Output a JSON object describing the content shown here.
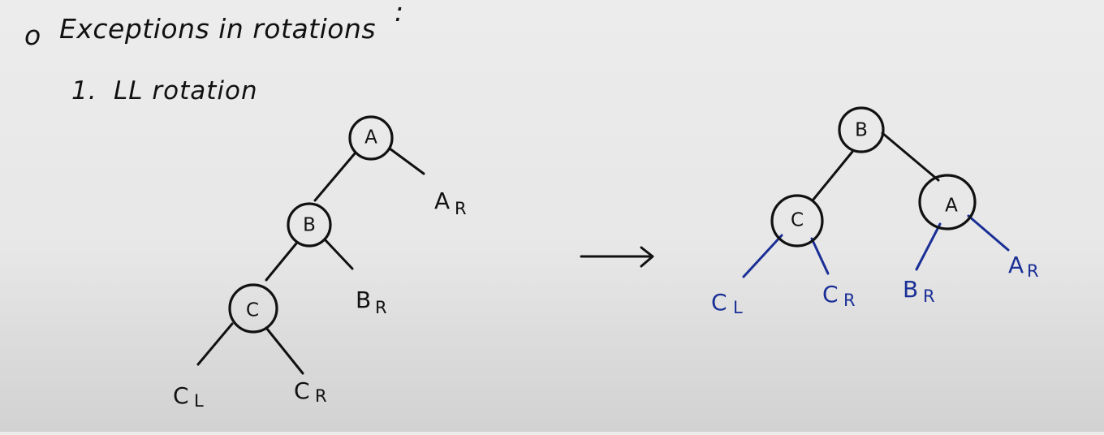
{
  "header": {
    "bullet": "o",
    "title": "Exceptions in rotations",
    "title_colon": ":"
  },
  "subheading": {
    "number": "1.",
    "label": "LL rotation"
  },
  "left_tree": {
    "nodes": {
      "a": "A",
      "b": "B",
      "c": "C"
    },
    "leaves": {
      "ar_main": "A",
      "ar_sub": "R",
      "br_main": "B",
      "br_sub": "R",
      "cl_main": "C",
      "cl_sub": "L",
      "cr_main": "C",
      "cr_sub": "R"
    }
  },
  "arrow": {
    "symbol": "→"
  },
  "right_tree": {
    "nodes": {
      "b": "B",
      "c": "C",
      "a": "A"
    },
    "leaves": {
      "cl_main": "C",
      "cl_sub": "L",
      "cr_main": "C",
      "cr_sub": "R",
      "br_main": "B",
      "br_sub": "R",
      "ar_main": "A",
      "ar_sub": "R"
    }
  },
  "colors": {
    "ink": "#111111",
    "blue": "#1a2f96",
    "board": "#e8e8e8"
  }
}
